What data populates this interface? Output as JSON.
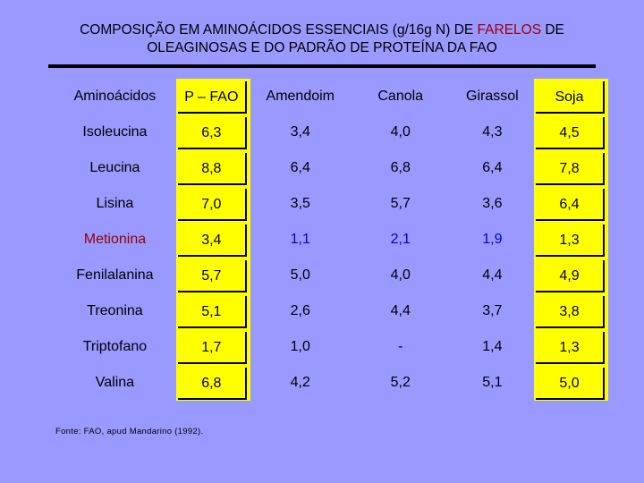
{
  "title": {
    "line1_pre": "COMPOSIÇÃO EM AMINOÁCIDOS ESSENCIAIS (g/16g N) DE ",
    "line1_hl": "FARELOS",
    "line1_post": " DE",
    "line2": "OLEAGINOSAS E DO PADRÃO DE PROTEÍNA DA FAO"
  },
  "table": {
    "headers": [
      "Aminoácidos",
      "P – FAO",
      "Amendoim",
      "Canola",
      "Girassol",
      "Soja"
    ],
    "rows": [
      {
        "name": "Isoleucina",
        "values": [
          "6,3",
          "3,4",
          "4,0",
          "4,3",
          "4,5"
        ]
      },
      {
        "name": "Leucina",
        "values": [
          "8,8",
          "6,4",
          "6,8",
          "6,4",
          "7,8"
        ]
      },
      {
        "name": "Lisina",
        "values": [
          "7,0",
          "3,5",
          "5,7",
          "3,6",
          "6,4"
        ]
      },
      {
        "name": "Metionina",
        "values": [
          "3,4",
          "1,1",
          "2,1",
          "1,9",
          "1,3"
        ]
      },
      {
        "name": "Fenilalanina",
        "values": [
          "5,7",
          "5,0",
          "4,0",
          "4,4",
          "4,9"
        ]
      },
      {
        "name": "Treonina",
        "values": [
          "5,1",
          "2,6",
          "4,4",
          "3,7",
          "3,8"
        ]
      },
      {
        "name": "Triptofano",
        "values": [
          "1,7",
          "1,0",
          "-",
          "1,4",
          "1,3"
        ]
      },
      {
        "name": "Valina",
        "values": [
          "6,8",
          "4,2",
          "5,2",
          "5,1",
          "5,0"
        ]
      }
    ]
  },
  "colors": {
    "background": "#9999ff",
    "highlight": "#ffff00",
    "accent_red": "#990000",
    "accent_blue": "#0000cc"
  },
  "source": "Fonte: FAO, apud Mandarino (1992)."
}
